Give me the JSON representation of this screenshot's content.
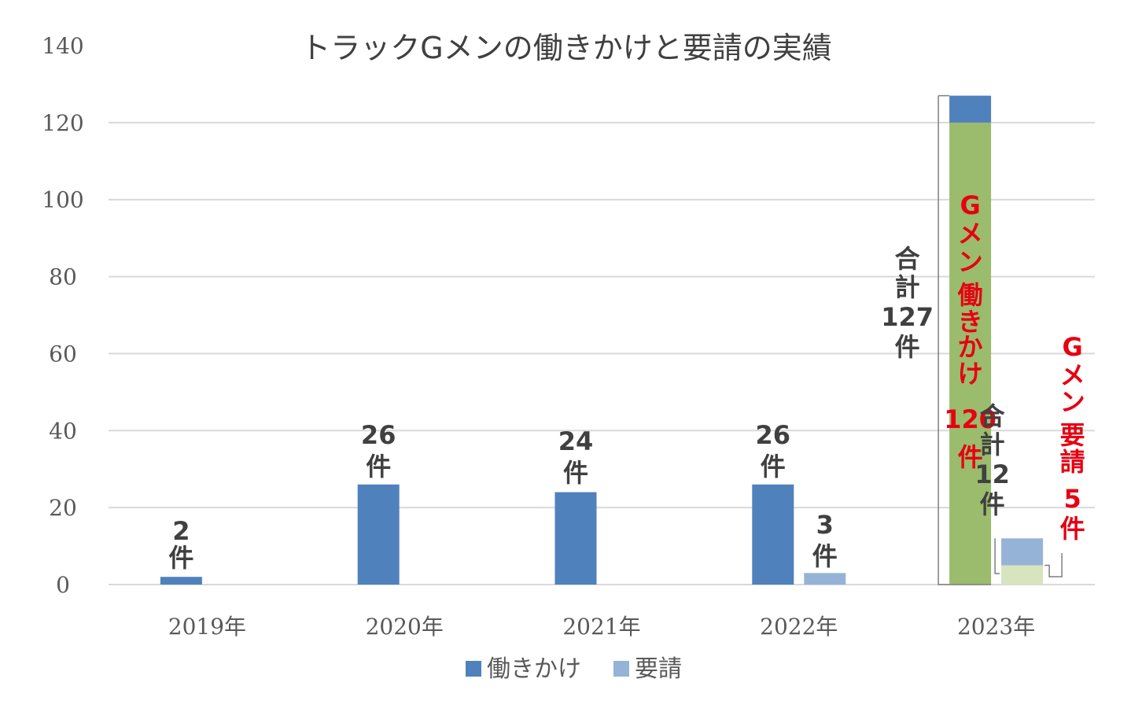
{
  "chart_data": {
    "type": "bar",
    "title": "トラックGメンの働きかけと要請の実績",
    "categories": [
      "2019年",
      "2020年",
      "2021年",
      "2022年",
      "2023年"
    ],
    "series": [
      {
        "name": "働きかけ",
        "values": [
          2,
          26,
          24,
          26,
          127
        ],
        "color": "#4f81bd"
      },
      {
        "name": "要請",
        "values": [
          0,
          0,
          0,
          3,
          12
        ],
        "color": "#95b3d7"
      }
    ],
    "gmen_breakdown": {
      "category": "2023年",
      "hatarakikake_gmen": 120,
      "yousei_gmen": 5,
      "gmen_color": "#9bbb6d",
      "gmen_yousei_color": "#d7e4bd"
    },
    "ylim": [
      0,
      140
    ],
    "yticks": [
      0,
      20,
      40,
      60,
      80,
      100,
      120,
      140
    ],
    "grid": true,
    "legend_position": "bottom",
    "data_labels": [
      {
        "id": "l2019",
        "lines": [
          "2",
          "件"
        ]
      },
      {
        "id": "l2020",
        "lines": [
          "26",
          "件"
        ]
      },
      {
        "id": "l2021",
        "lines": [
          "24",
          "件"
        ]
      },
      {
        "id": "l2022a",
        "lines": [
          "26",
          "件"
        ]
      },
      {
        "id": "l2022b",
        "lines": [
          "3",
          "件"
        ]
      },
      {
        "id": "l2023total",
        "lines": [
          "合",
          "計",
          "127",
          "件"
        ]
      },
      {
        "id": "l2023gmen",
        "lines": [
          "G",
          "メ",
          "ン",
          "働",
          "き",
          "か",
          "け",
          "120",
          "件"
        ],
        "red": true
      },
      {
        "id": "l2023ytotal",
        "lines": [
          "合",
          "計",
          "12",
          "件"
        ]
      },
      {
        "id": "l2023ygmen",
        "lines": [
          "G",
          "メ",
          "ン",
          "要",
          "請",
          "5",
          "件"
        ],
        "red": true
      }
    ]
  }
}
